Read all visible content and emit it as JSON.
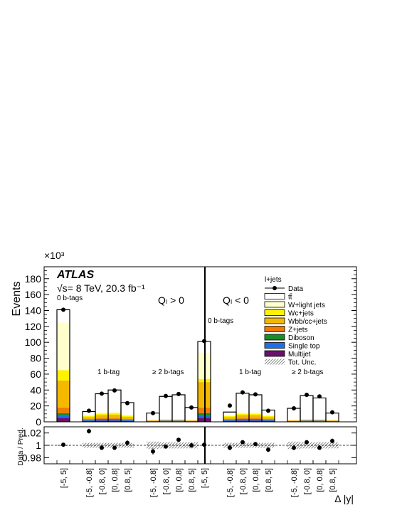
{
  "chart_data": [
    {
      "type": "bar",
      "stacked": true,
      "ylabel": "Events",
      "multiplier": "×10³",
      "ylim": [
        0,
        195000
      ],
      "yticks": [
        0,
        20000,
        40000,
        60000,
        80000,
        100000,
        120000,
        140000,
        160000,
        180000
      ],
      "ytick_labels": [
        "0",
        "20",
        "40",
        "60",
        "80",
        "100",
        "120",
        "140",
        "160",
        "180"
      ],
      "experiment": "ATLAS",
      "energy_label": "√s= 8 TeV, 20.3 fb⁻¹",
      "channel": "l+jets",
      "region_labels": [
        "Qₗ > 0",
        "Qₗ < 0"
      ],
      "group_labels": [
        "0 b-tags",
        "1 b-tag",
        "≥ 2 b-tags",
        "0 b-tags",
        "1 b-tag",
        "≥ 2 b-tags"
      ],
      "categories": [
        "[-5, 5]",
        "[-5, -0.8]",
        "[-0.8, 0]",
        "[0, 0.8]",
        "[0.8, 5]",
        "[-5, -0.8]",
        "[-0.8, 0]",
        "[0, 0.8]",
        "[0.8, 5]",
        "[-5, 5]",
        "[-5, -0.8]",
        "[-0.8, 0]",
        "[0, 0.8]",
        "[0.8, 5]",
        "[-5, -0.8]",
        "[-0.8, 0]",
        "[0, 0.8]",
        "[0.8, 5]"
      ],
      "xlabel": "Δ |y|",
      "series": [
        {
          "name": "Multijet",
          "color": "#6a0f6e",
          "values": [
            5000,
            1200,
            1500,
            1500,
            1200,
            500,
            700,
            700,
            500,
            5000,
            1200,
            1500,
            1500,
            1200,
            500,
            700,
            700,
            500
          ]
        },
        {
          "name": "Single top",
          "color": "#1e6fe6",
          "values": [
            3000,
            1300,
            2000,
            2000,
            1300,
            500,
            800,
            800,
            500,
            3000,
            1300,
            2000,
            2000,
            1300,
            500,
            800,
            800,
            500
          ]
        },
        {
          "name": "Diboson",
          "color": "#1a8c2a",
          "values": [
            3000,
            300,
            300,
            300,
            300,
            100,
            100,
            100,
            100,
            3000,
            300,
            300,
            300,
            300,
            100,
            100,
            100,
            100
          ]
        },
        {
          "name": "Z+jets",
          "color": "#f07d00",
          "values": [
            7000,
            800,
            1200,
            1200,
            800,
            300,
            400,
            400,
            300,
            7000,
            800,
            1200,
            1200,
            800,
            300,
            400,
            400,
            300
          ]
        },
        {
          "name": "Wbb/cc+jets",
          "color": "#f5b800",
          "values": [
            34000,
            2400,
            3500,
            4000,
            2600,
            500,
            700,
            700,
            500,
            32000,
            2400,
            3500,
            3500,
            2400,
            500,
            700,
            700,
            500
          ]
        },
        {
          "name": "Wc+jets",
          "color": "#fff200",
          "values": [
            13000,
            1500,
            1800,
            2000,
            1500,
            200,
            300,
            300,
            200,
            4000,
            1300,
            1700,
            1700,
            1300,
            200,
            300,
            300,
            200
          ]
        },
        {
          "name": "W+light jets",
          "color": "#ffffcc",
          "values": [
            60000,
            1500,
            2000,
            2000,
            1500,
            300,
            500,
            500,
            300,
            33000,
            1500,
            2000,
            2000,
            1500,
            300,
            500,
            500,
            300
          ]
        },
        {
          "name": "tt̄",
          "color": "#ffffff",
          "values": [
            16000,
            4000,
            23000,
            27000,
            15000,
            8600,
            28500,
            30500,
            15600,
            14000,
            3500,
            23800,
            21800,
            6000,
            14600,
            29500,
            26500,
            8600
          ]
        }
      ],
      "data": {
        "name": "Data",
        "values": [
          141000,
          14000,
          35500,
          39500,
          23500,
          11000,
          32500,
          35000,
          18000,
          101500,
          20500,
          37000,
          34500,
          14000,
          17000,
          34000,
          32000,
          12000
        ]
      },
      "legend_labels": [
        "Data",
        "tt̄",
        "W+light jets",
        "Wc+jets",
        "Wbb/cc+jets",
        "Z+jets",
        "Diboson",
        "Single top",
        "Multijet",
        "Tot. Unc."
      ],
      "legend_position": "top-right",
      "ratio": {
        "ylabel": "Data / Pred.",
        "ylim": [
          0.97,
          1.03
        ],
        "yticks": [
          0.98,
          1.0,
          1.02
        ],
        "ytick_labels": [
          "0.98",
          "1",
          "1.02"
        ],
        "values": [
          1.001,
          1.023,
          0.996,
          0.996,
          1.004,
          0.99,
          0.998,
          1.009,
          1.0,
          1.001,
          0.996,
          1.005,
          1.002,
          0.993,
          0.996,
          1.005,
          0.996,
          1.007
        ],
        "errors": [
          0.001,
          0.004,
          0.003,
          0.003,
          0.004,
          0.005,
          0.003,
          0.003,
          0.004,
          0.001,
          0.004,
          0.003,
          0.003,
          0.004,
          0.004,
          0.003,
          0.003,
          0.004
        ],
        "unc_band": [
          0.001,
          0.004,
          0.004,
          0.004,
          0.004,
          0.006,
          0.005,
          0.005,
          0.005,
          0.001,
          0.004,
          0.004,
          0.004,
          0.004,
          0.006,
          0.005,
          0.005,
          0.005
        ]
      }
    }
  ]
}
